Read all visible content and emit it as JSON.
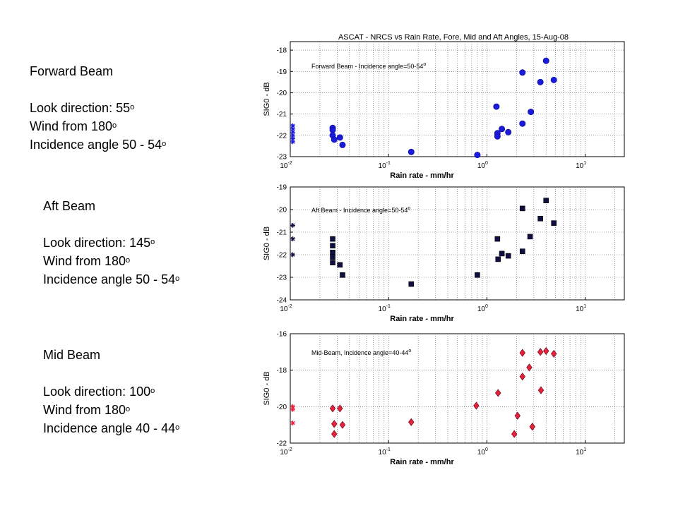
{
  "beams": [
    {
      "title": "Forward Beam",
      "look_label": "Look direction: 55",
      "wind_label": "Wind from 180",
      "inc_label": "Incidence angle 50 - 54",
      "sup": "o"
    },
    {
      "title": "Aft Beam",
      "look_label": "Look direction: 145",
      "wind_label": "Wind from 180",
      "inc_label": "Incidence angle 50 - 54",
      "sup": "o"
    },
    {
      "title": "Mid Beam",
      "look_label": "Look direction: 100",
      "wind_label": "Wind from 180",
      "inc_label": "Incidence angle 40 - 44",
      "sup": "o"
    }
  ],
  "figure_title": "ASCAT - NRCS vs Rain Rate, Fore, Mid and Aft Angles, 15-Aug-08",
  "chart_data": [
    {
      "type": "scatter",
      "title": "ASCAT - NRCS vs Rain Rate, Fore, Mid and Aft Angles, 15-Aug-08",
      "annotation": "Forward Beam - Incidence angle=50-54",
      "annotation_sup": "o",
      "xlabel": "Rain rate - mm/hr",
      "ylabel": "SIG0 - dB",
      "xscale": "log",
      "xlim": [
        0.01,
        25
      ],
      "ylim": [
        -23,
        -17.6
      ],
      "yticks": [
        -18,
        -19,
        -20,
        -21,
        -22,
        -23
      ],
      "xticks": [
        {
          "base": "10",
          "exp": "-2",
          "value": 0.01
        },
        {
          "base": "10",
          "exp": "-1",
          "value": 0.1
        },
        {
          "base": "10",
          "exp": "0",
          "value": 1
        },
        {
          "base": "10",
          "exp": "1",
          "value": 10
        }
      ],
      "grid": true,
      "marker_color": "#1a1adb",
      "star_points": [
        [
          0.0106,
          -21.55
        ],
        [
          0.0106,
          -21.7
        ],
        [
          0.0106,
          -21.85
        ],
        [
          0.0106,
          -22.0
        ],
        [
          0.0106,
          -22.15
        ],
        [
          0.0106,
          -22.3
        ]
      ],
      "points": [
        [
          0.027,
          -21.65
        ],
        [
          0.027,
          -21.75
        ],
        [
          0.027,
          -22.0
        ],
        [
          0.028,
          -22.2
        ],
        [
          0.032,
          -22.1
        ],
        [
          0.034,
          -22.45
        ],
        [
          0.17,
          -22.78
        ],
        [
          0.8,
          -22.92
        ],
        [
          1.25,
          -20.65
        ],
        [
          1.28,
          -21.9
        ],
        [
          1.28,
          -22.05
        ],
        [
          1.42,
          -21.7
        ],
        [
          1.65,
          -21.85
        ],
        [
          2.3,
          -19.05
        ],
        [
          2.3,
          -21.45
        ],
        [
          2.8,
          -20.9
        ],
        [
          3.5,
          -19.5
        ],
        [
          4.0,
          -18.5
        ],
        [
          4.8,
          -19.4
        ]
      ]
    },
    {
      "type": "scatter",
      "annotation": "Aft Beam - Incidence angle=50-54",
      "annotation_sup": "o",
      "xlabel": "Rain rate - mm/hr",
      "ylabel": "SIG0 - dB",
      "xscale": "log",
      "xlim": [
        0.01,
        25
      ],
      "ylim": [
        -24,
        -19
      ],
      "yticks": [
        -19,
        -20,
        -21,
        -22,
        -23,
        -24
      ],
      "xticks": [
        {
          "base": "10",
          "exp": "-2",
          "value": 0.01
        },
        {
          "base": "10",
          "exp": "-1",
          "value": 0.1
        },
        {
          "base": "10",
          "exp": "0",
          "value": 1
        },
        {
          "base": "10",
          "exp": "1",
          "value": 10
        }
      ],
      "grid": true,
      "marker_color": "#101040",
      "star_points": [
        [
          0.0106,
          -20.7
        ],
        [
          0.0106,
          -21.3
        ],
        [
          0.0106,
          -22.0
        ]
      ],
      "points": [
        [
          0.027,
          -21.3
        ],
        [
          0.027,
          -21.6
        ],
        [
          0.027,
          -21.9
        ],
        [
          0.027,
          -22.1
        ],
        [
          0.027,
          -22.35
        ],
        [
          0.032,
          -22.45
        ],
        [
          0.034,
          -22.9
        ],
        [
          0.17,
          -23.3
        ],
        [
          0.8,
          -22.9
        ],
        [
          1.28,
          -21.3
        ],
        [
          1.3,
          -22.2
        ],
        [
          1.42,
          -21.95
        ],
        [
          1.65,
          -22.05
        ],
        [
          2.3,
          -19.95
        ],
        [
          2.3,
          -21.85
        ],
        [
          2.75,
          -21.2
        ],
        [
          3.5,
          -20.4
        ],
        [
          4.0,
          -19.6
        ],
        [
          4.8,
          -20.6
        ]
      ]
    },
    {
      "type": "scatter",
      "annotation": "Mid-Beam, Incidence angle=40-44",
      "annotation_sup": "o",
      "xlabel": "Rain rate - mm/hr",
      "ylabel": "SIG0 - dB",
      "xscale": "log",
      "xlim": [
        0.01,
        25
      ],
      "ylim": [
        -22,
        -16
      ],
      "yticks": [
        -16,
        -18,
        -20,
        -22
      ],
      "xticks": [
        {
          "base": "10",
          "exp": "-2",
          "value": 0.01
        },
        {
          "base": "10",
          "exp": "-1",
          "value": 0.1
        },
        {
          "base": "10",
          "exp": "0",
          "value": 1
        },
        {
          "base": "10",
          "exp": "1",
          "value": 10
        }
      ],
      "grid": true,
      "marker_color": "#e8223c",
      "star_points": [
        [
          0.0106,
          -20.0
        ],
        [
          0.0106,
          -20.15
        ],
        [
          0.0106,
          -20.9
        ]
      ],
      "points": [
        [
          0.027,
          -20.1
        ],
        [
          0.028,
          -20.95
        ],
        [
          0.028,
          -21.5
        ],
        [
          0.032,
          -20.1
        ],
        [
          0.034,
          -21.0
        ],
        [
          0.17,
          -20.85
        ],
        [
          0.78,
          -19.95
        ],
        [
          1.3,
          -19.25
        ],
        [
          1.9,
          -21.5
        ],
        [
          2.05,
          -20.5
        ],
        [
          2.3,
          -17.05
        ],
        [
          2.3,
          -18.35
        ],
        [
          2.7,
          -17.85
        ],
        [
          2.9,
          -21.1
        ],
        [
          3.5,
          -17.0
        ],
        [
          3.55,
          -19.1
        ],
        [
          4.0,
          -16.95
        ],
        [
          4.8,
          -17.1
        ]
      ]
    }
  ]
}
